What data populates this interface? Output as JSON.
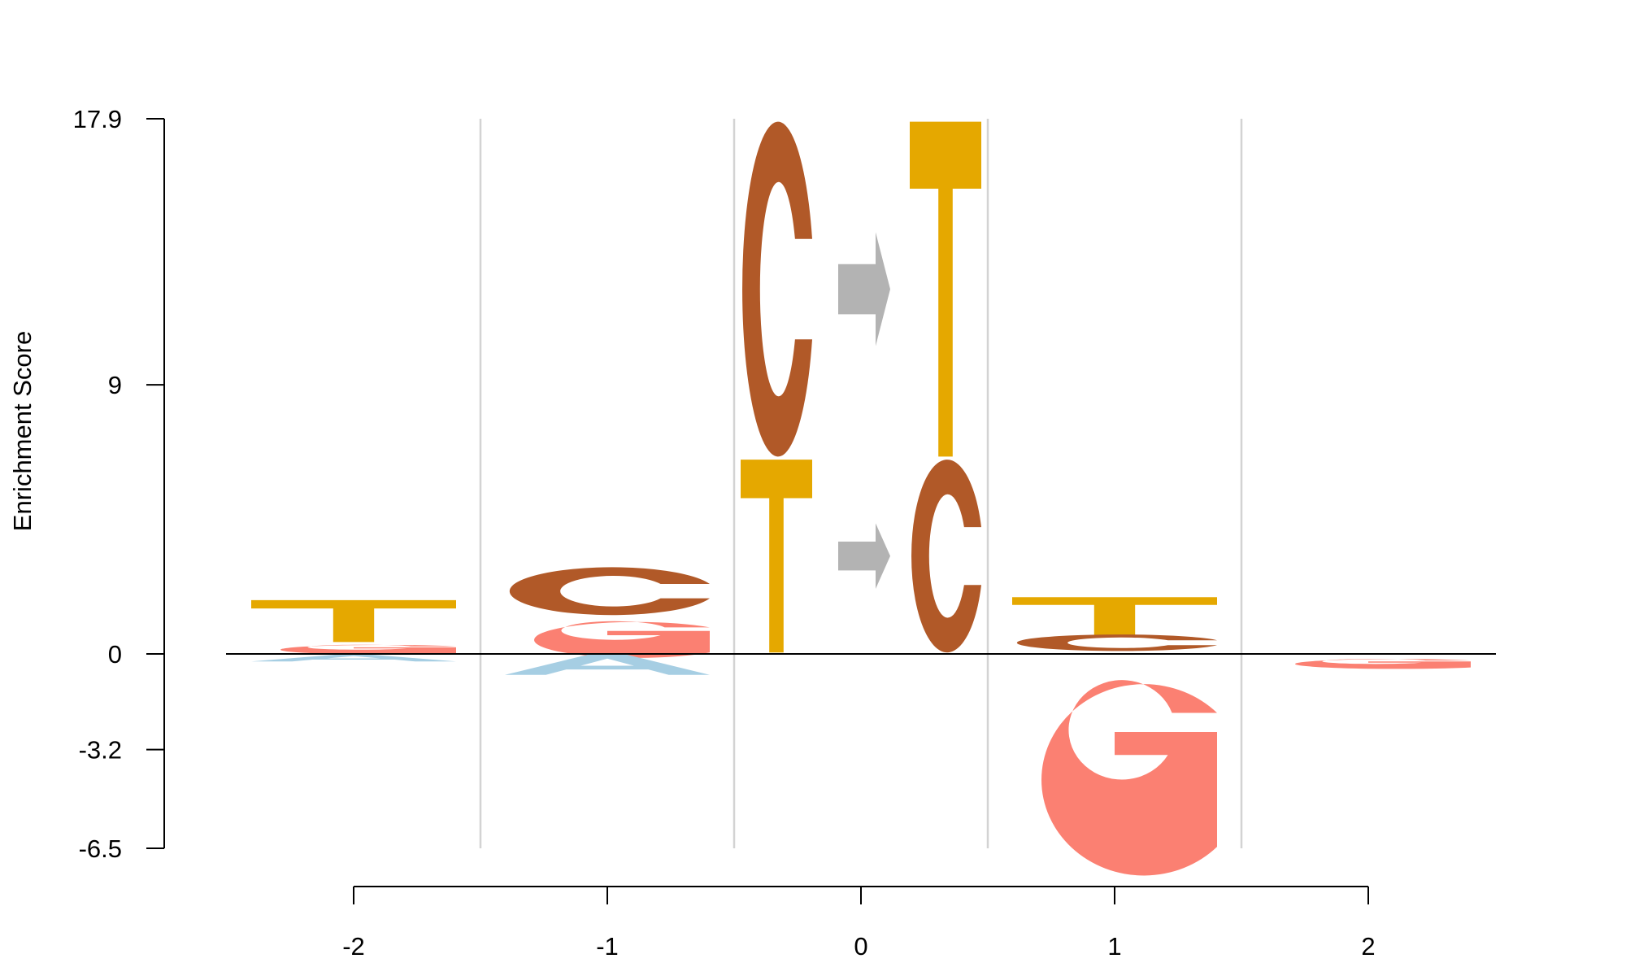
{
  "chart_data": {
    "type": "sequence-logo",
    "ylabel": "Enrichment Score",
    "xlabel": "",
    "ylim": [
      -6.5,
      17.9
    ],
    "yticks": [
      {
        "value": 17.9,
        "label": "17.9"
      },
      {
        "value": 9,
        "label": "9"
      },
      {
        "value": 0,
        "label": "0"
      },
      {
        "value": -3.2,
        "label": "-3.2"
      },
      {
        "value": -6.5,
        "label": "-6.5"
      }
    ],
    "positions": [
      {
        "value": -2,
        "label": "-2"
      },
      {
        "value": -1,
        "label": "-1"
      },
      {
        "value": 0,
        "label": "0"
      },
      {
        "value": 1,
        "label": "1"
      },
      {
        "value": 2,
        "label": "2"
      }
    ],
    "grid": "vertical dividers between positions",
    "colors": {
      "A": "#a6cee3",
      "C": "#b15928",
      "G": "#fb8072",
      "T": "#e5a800",
      "arrow": "#b3b3b3"
    },
    "letters": [
      {
        "pos": -2,
        "letter": "T",
        "y0": 0.4,
        "y1": 1.8
      },
      {
        "pos": -2,
        "letter": "G",
        "y0": 0.03,
        "y1": 0.35
      },
      {
        "pos": -2,
        "letter": "A",
        "y0": -0.25,
        "y1": -0.02
      },
      {
        "pos": -1,
        "letter": "C",
        "y0": 1.3,
        "y1": 2.9
      },
      {
        "pos": -1,
        "letter": "G",
        "y0": 0.05,
        "y1": 1.25
      },
      {
        "pos": -1,
        "letter": "A",
        "y0": -0.7,
        "y1": 0.0
      },
      {
        "pos": 1,
        "letter": "T",
        "y0": 0.6,
        "y1": 1.9
      },
      {
        "pos": 1,
        "letter": "C",
        "y0": 0.1,
        "y1": 0.65
      },
      {
        "pos": 1,
        "letter": "G",
        "y0": -6.45,
        "y1": -0.05
      },
      {
        "pos": 2,
        "letter": "G",
        "y0": -0.45,
        "y1": -0.12
      }
    ],
    "substitutions": [
      {
        "from": "C",
        "to": "T",
        "y0": 6.6,
        "y1": 17.8
      },
      {
        "from": "T",
        "to": "C",
        "y0": 0.05,
        "y1": 6.5
      }
    ]
  }
}
